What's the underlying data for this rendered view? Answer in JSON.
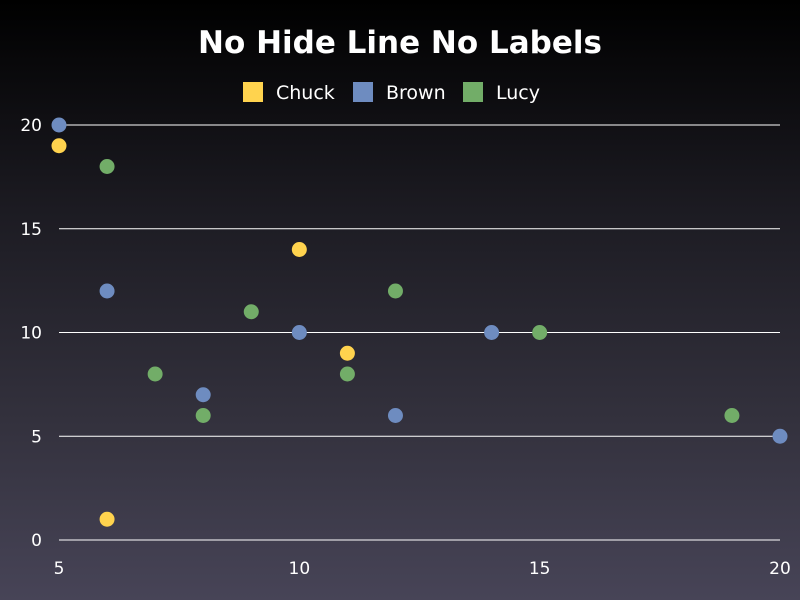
{
  "chart_data": {
    "type": "scatter",
    "title": "No Hide Line No Labels",
    "xlabel": "",
    "ylabel": "",
    "xlim": [
      5,
      20
    ],
    "ylim": [
      0,
      20
    ],
    "x_ticks": [
      5,
      10,
      15,
      20
    ],
    "y_ticks": [
      0,
      5,
      10,
      15,
      20
    ],
    "grid": "horizontal",
    "legend_position": "top",
    "series": [
      {
        "name": "Chuck",
        "color": "#ffd34e",
        "points": [
          {
            "x": 5,
            "y": 19
          },
          {
            "x": 6,
            "y": 1
          },
          {
            "x": 10,
            "y": 14
          },
          {
            "x": 11,
            "y": 9
          }
        ]
      },
      {
        "name": "Brown",
        "color": "#6e8cc0",
        "points": [
          {
            "x": 5,
            "y": 20
          },
          {
            "x": 6,
            "y": 12
          },
          {
            "x": 8,
            "y": 7
          },
          {
            "x": 10,
            "y": 10
          },
          {
            "x": 12,
            "y": 6
          },
          {
            "x": 14,
            "y": 10
          },
          {
            "x": 20,
            "y": 5
          }
        ]
      },
      {
        "name": "Lucy",
        "color": "#72ad68",
        "points": [
          {
            "x": 6,
            "y": 18
          },
          {
            "x": 7,
            "y": 8
          },
          {
            "x": 8,
            "y": 6
          },
          {
            "x": 9,
            "y": 11
          },
          {
            "x": 11,
            "y": 8
          },
          {
            "x": 12,
            "y": 12
          },
          {
            "x": 15,
            "y": 10
          },
          {
            "x": 19,
            "y": 6
          }
        ]
      }
    ]
  }
}
